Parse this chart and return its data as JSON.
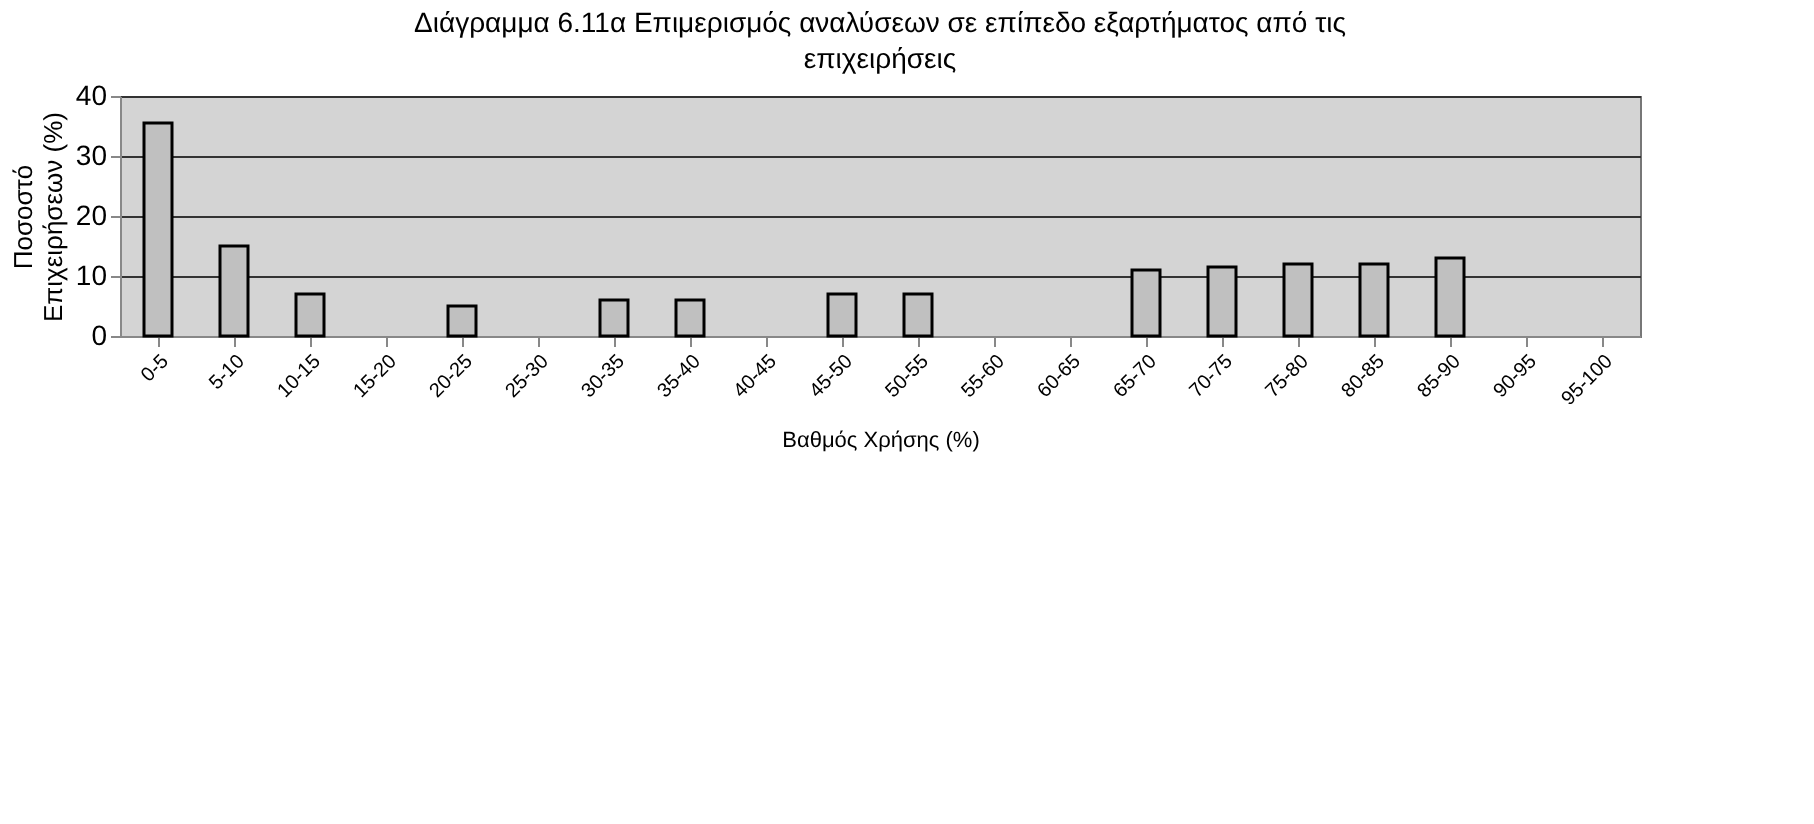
{
  "chart_data": {
    "type": "bar",
    "title": "Διάγραμμα 6.11α Επιμερισμός αναλύσεων σε επίπεδο εξαρτήματος από τις επιχειρήσεις",
    "xlabel": "Βαθμός Χρήσης (%)",
    "ylabel": "Ποσοστό Επιχειρήσεων (%)",
    "categories": [
      "0-5",
      "5-10",
      "10-15",
      "15-20",
      "20-25",
      "25-30",
      "30-35",
      "35-40",
      "40-45",
      "45-50",
      "50-55",
      "55-60",
      "60-65",
      "65-70",
      "70-75",
      "75-80",
      "80-85",
      "85-90",
      "90-95",
      "95-100"
    ],
    "values": [
      35.5,
      15,
      7,
      null,
      5,
      null,
      6,
      6,
      null,
      7,
      7,
      null,
      null,
      11,
      11.5,
      12,
      12,
      13,
      null,
      null
    ],
    "color": "#c0c0c0",
    "ylim": [
      0,
      40
    ],
    "yticks": [
      0,
      10,
      20,
      30,
      40
    ],
    "grid": "y"
  }
}
